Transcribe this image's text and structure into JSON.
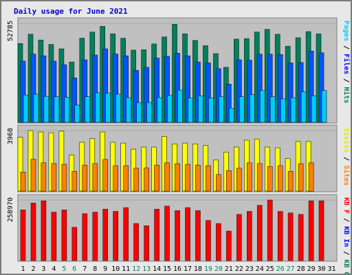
{
  "title": "Daily usage for June 2021",
  "chart_data": [
    {
      "type": "bar",
      "name": "hits-files-pages",
      "right_label": [
        {
          "text": "Pages",
          "color": "#00ccff"
        },
        {
          "text": " / ",
          "color": "#000000"
        },
        {
          "text": "Files",
          "color": "#0000ff"
        },
        {
          "text": " / ",
          "color": "#000000"
        },
        {
          "text": "Hits",
          "color": "#00805c"
        }
      ],
      "ymax_label": "52785",
      "ylim": [
        0,
        52785
      ],
      "categories": [
        "1",
        "2",
        "3",
        "4",
        "5",
        "6",
        "7",
        "8",
        "9",
        "10",
        "11",
        "12",
        "13",
        "14",
        "15",
        "16",
        "17",
        "18",
        "19",
        "20",
        "21",
        "22",
        "23",
        "24",
        "25",
        "26",
        "27",
        "28",
        "29",
        "30",
        "31"
      ],
      "series": [
        {
          "name": "Hits",
          "color": "#00805c",
          "values": [
            42050,
            46990,
            43930,
            41580,
            39230,
            32170,
            44870,
            48160,
            51220,
            47230,
            44880,
            38520,
            38750,
            41810,
            45570,
            52310,
            47220,
            43700,
            40880,
            36640,
            29350,
            44400,
            44640,
            48160,
            49580,
            46990,
            40630,
            45110,
            48400,
            47220,
            0
          ]
        },
        {
          "name": "Files",
          "color": "#0055ff",
          "values": [
            32650,
            36410,
            35470,
            32650,
            30770,
            23710,
            33360,
            35940,
            39230,
            36410,
            35470,
            27710,
            29350,
            34290,
            35230,
            36880,
            35470,
            32170,
            31700,
            28640,
            20420,
            33360,
            33120,
            36410,
            36410,
            36170,
            31700,
            31930,
            38050,
            37110,
            0
          ]
        },
        {
          "name": "Pages",
          "color": "#00ccff",
          "values": [
            14610,
            15080,
            13900,
            13670,
            13430,
            9190,
            13670,
            15780,
            15550,
            15080,
            13200,
            10600,
            10600,
            13200,
            14370,
            17200,
            12960,
            14140,
            12960,
            13670,
            7540,
            13670,
            14840,
            16960,
            13670,
            12490,
            13200,
            16260,
            14140,
            16960,
            0
          ]
        }
      ]
    },
    {
      "type": "bar",
      "name": "visits-sites",
      "right_label": [
        {
          "text": "Visits",
          "color": "#e6e600"
        },
        {
          "text": " / ",
          "color": "#000000"
        },
        {
          "text": "Sites",
          "color": "#ff8000"
        }
      ],
      "ymax_label": "3968",
      "ylim": [
        0,
        3968
      ],
      "categories": [
        "1",
        "2",
        "3",
        "4",
        "5",
        "6",
        "7",
        "8",
        "9",
        "10",
        "11",
        "12",
        "13",
        "14",
        "15",
        "16",
        "17",
        "18",
        "19",
        "20",
        "21",
        "22",
        "23",
        "24",
        "25",
        "26",
        "27",
        "28",
        "29",
        "30",
        "31"
      ],
      "series": [
        {
          "name": "Visits",
          "color": "#ffff00",
          "values": [
            3540,
            3970,
            3880,
            3830,
            3930,
            2370,
            3200,
            3440,
            3880,
            3200,
            3150,
            2750,
            2890,
            2890,
            3590,
            3100,
            3150,
            3100,
            3000,
            2040,
            2560,
            2890,
            3340,
            3420,
            2890,
            2840,
            2140,
            3250,
            3250,
            0,
            0
          ]
        },
        {
          "name": "Sites",
          "color": "#ff8000",
          "values": [
            1250,
            2090,
            1860,
            1810,
            1760,
            1300,
            1710,
            1810,
            2080,
            1670,
            1670,
            1500,
            1530,
            1710,
            1860,
            1800,
            1760,
            1710,
            1670,
            1090,
            1350,
            1500,
            1860,
            1810,
            1620,
            1670,
            1300,
            1800,
            1860,
            0,
            0
          ]
        }
      ]
    },
    {
      "type": "bar",
      "name": "kbytes",
      "right_label": [
        {
          "text": "KB F",
          "color": "#ff0000"
        },
        {
          "text": " / ",
          "color": "#000000"
        },
        {
          "text": "KB In",
          "color": "#0000ff"
        },
        {
          "text": " / ",
          "color": "#000000"
        },
        {
          "text": "KB Out",
          "color": "#00805c"
        }
      ],
      "ymax_label": "258970",
      "ylim": [
        0,
        258970
      ],
      "categories": [
        "1",
        "2",
        "3",
        "4",
        "5",
        "6",
        "7",
        "8",
        "9",
        "10",
        "11",
        "12",
        "13",
        "14",
        "15",
        "16",
        "17",
        "18",
        "19",
        "20",
        "21",
        "22",
        "23",
        "24",
        "25",
        "26",
        "27",
        "28",
        "29",
        "30",
        "31"
      ],
      "series": [
        {
          "name": "KB F",
          "color": "#ff0000",
          "values": [
            216900,
            246000,
            255700,
            207200,
            216900,
            142500,
            200700,
            207200,
            220100,
            210400,
            226600,
            158700,
            149000,
            220100,
            233000,
            213600,
            226600,
            213600,
            171600,
            158700,
            126300,
            197500,
            210400,
            236200,
            258900,
            210400,
            204000,
            197500,
            255700,
            255700,
            0
          ]
        }
      ]
    }
  ],
  "x_label_colors": {
    "weekday": "#000000",
    "weekend": "#00805c",
    "weekend_days": [
      "5",
      "6",
      "12",
      "13",
      "19",
      "20",
      "26",
      "27"
    ]
  }
}
